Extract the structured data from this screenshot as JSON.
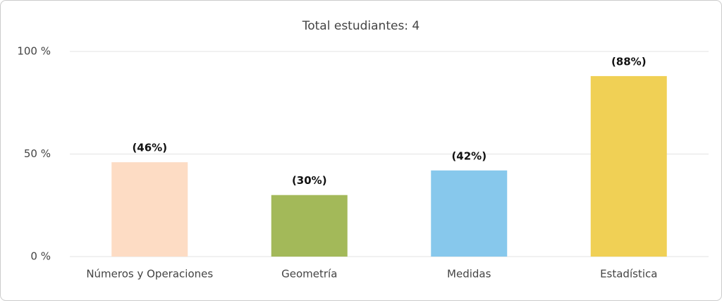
{
  "chart_data": {
    "type": "bar",
    "title": "Total estudiantes: 4",
    "categories": [
      "Números y Operaciones",
      "Geometría",
      "Medidas",
      "Estadística"
    ],
    "values": [
      46,
      30,
      42,
      88
    ],
    "value_labels": [
      "(46%)",
      "(30%)",
      "(42%)",
      "(88%)"
    ],
    "colors": [
      "#fddcc4",
      "#a3b959",
      "#87c8ec",
      "#f0d055"
    ],
    "ylim": [
      0,
      100
    ],
    "yticks": [
      {
        "value": 0,
        "label": "0 %"
      },
      {
        "value": 50,
        "label": "50 %"
      },
      {
        "value": 100,
        "label": "100 %"
      }
    ],
    "grid": true
  }
}
